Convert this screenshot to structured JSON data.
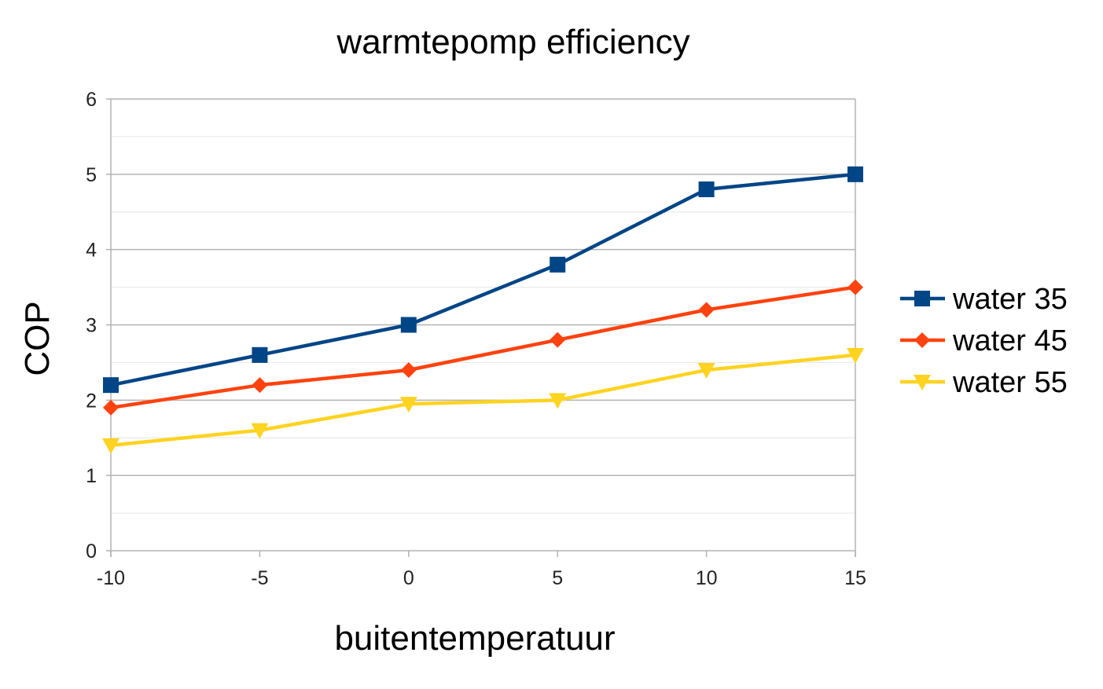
{
  "chart_data": {
    "type": "line",
    "title": "warmtepomp efficiency",
    "xlabel": "buitentemperatuur",
    "ylabel": "COP",
    "x": [
      -10,
      -5,
      0,
      5,
      10,
      15
    ],
    "x_ticks": [
      "-10",
      "-5",
      "0",
      "5",
      "10",
      "15"
    ],
    "y_ticks": [
      "0",
      "1",
      "2",
      "3",
      "4",
      "5",
      "6"
    ],
    "xlim": [
      -10,
      15
    ],
    "ylim": [
      0,
      6
    ],
    "grid": true,
    "legend_position": "right",
    "series": [
      {
        "name": "water 35",
        "color": "#004586",
        "marker": "square",
        "values": [
          2.2,
          2.6,
          3.0,
          3.8,
          4.8,
          5.0
        ]
      },
      {
        "name": "water 45",
        "color": "#ff420e",
        "marker": "diamond",
        "values": [
          1.9,
          2.2,
          2.4,
          2.8,
          3.2,
          3.5
        ]
      },
      {
        "name": "water 55",
        "color": "#ffd320",
        "marker": "triangle-down",
        "values": [
          1.4,
          1.6,
          1.95,
          2.0,
          2.4,
          2.6
        ]
      }
    ]
  }
}
